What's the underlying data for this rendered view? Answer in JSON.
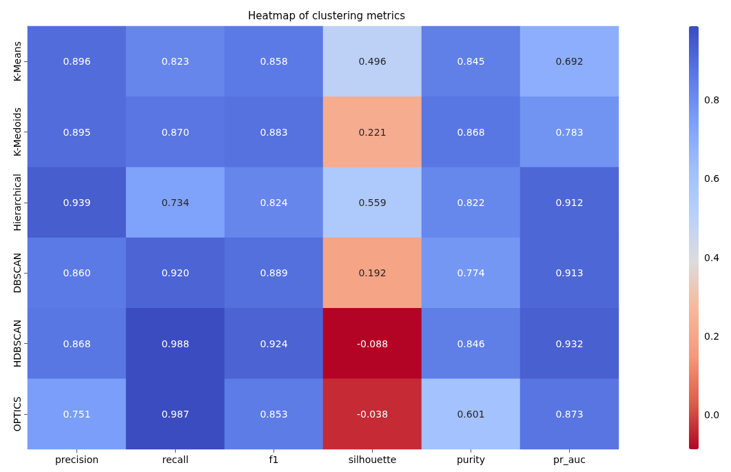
{
  "chart_data": {
    "type": "heatmap",
    "title": "Heatmap of clustering metrics",
    "categories": [
      "precision",
      "recall",
      "f1",
      "silhouette",
      "purity",
      "pr_auc"
    ],
    "y_categories": [
      "K-Means",
      "K-Medoids",
      "Hierarchical",
      "DBSCAN",
      "HDBSCAN",
      "OPTICS"
    ],
    "cells": [
      [
        0.896,
        0.823,
        0.858,
        0.496,
        0.845,
        0.692
      ],
      [
        0.895,
        0.87,
        0.883,
        0.221,
        0.868,
        0.783
      ],
      [
        0.939,
        0.734,
        0.824,
        0.559,
        0.822,
        0.912
      ],
      [
        0.86,
        0.92,
        0.889,
        0.192,
        0.774,
        0.913
      ],
      [
        0.868,
        0.988,
        0.924,
        -0.088,
        0.846,
        0.932
      ],
      [
        0.751,
        0.987,
        0.853,
        -0.038,
        0.601,
        0.873
      ]
    ],
    "cell_labels": [
      [
        "0.896",
        "0.823",
        "0.858",
        "0.496",
        "0.845",
        "0.692"
      ],
      [
        "0.895",
        "0.870",
        "0.883",
        "0.221",
        "0.868",
        "0.783"
      ],
      [
        "0.939",
        "0.734",
        "0.824",
        "0.559",
        "0.822",
        "0.912"
      ],
      [
        "0.860",
        "0.920",
        "0.889",
        "0.192",
        "0.774",
        "0.913"
      ],
      [
        "0.868",
        "0.988",
        "0.924",
        "-0.088",
        "0.846",
        "0.932"
      ],
      [
        "0.751",
        "0.987",
        "0.853",
        "-0.038",
        "0.601",
        "0.873"
      ]
    ],
    "clim": [
      -0.088,
      0.988
    ],
    "cticks": [
      {
        "value": 0,
        "label": "0.0"
      },
      {
        "value": 0.2,
        "label": "0.2"
      },
      {
        "value": 0.4,
        "label": "0.4"
      },
      {
        "value": 0.6,
        "label": "0.6"
      },
      {
        "value": 0.8,
        "label": "0.8"
      }
    ]
  }
}
